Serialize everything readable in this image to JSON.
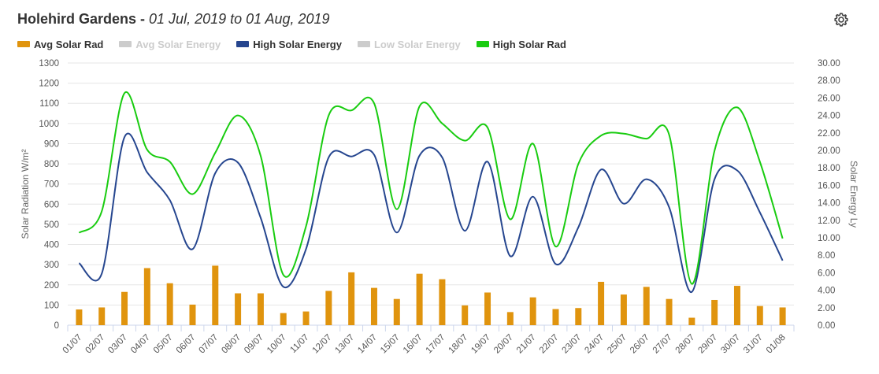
{
  "title": {
    "station": "Holehird Gardens",
    "separator": " - ",
    "range": "01 Jul, 2019 to 01 Aug, 2019"
  },
  "settings_icon": "gear-icon",
  "legend": [
    {
      "label": "Avg Solar Rad",
      "color": "#e0940e",
      "visible": true
    },
    {
      "label": "Avg Solar Energy",
      "color": "#cccccc",
      "visible": false
    },
    {
      "label": "High Solar Energy",
      "color": "#26468f",
      "visible": true
    },
    {
      "label": "Low Solar Energy",
      "color": "#cccccc",
      "visible": false
    },
    {
      "label": "High Solar Rad",
      "color": "#19cc10",
      "visible": true
    }
  ],
  "chart_data": {
    "type": "bar+line",
    "categories": [
      "01/07",
      "02/07",
      "03/07",
      "04/07",
      "05/07",
      "06/07",
      "07/07",
      "08/07",
      "09/07",
      "10/07",
      "11/07",
      "12/07",
      "13/07",
      "14/07",
      "15/07",
      "16/07",
      "17/07",
      "18/07",
      "19/07",
      "20/07",
      "21/07",
      "22/07",
      "23/07",
      "24/07",
      "25/07",
      "26/07",
      "27/07",
      "28/07",
      "29/07",
      "30/07",
      "31/07",
      "01/08"
    ],
    "y_left": {
      "label": "Solar Radiation W/m²",
      "min": 0,
      "max": 1300,
      "ticks": [
        "0",
        "100",
        "200",
        "300",
        "400",
        "500",
        "600",
        "700",
        "800",
        "900",
        "1000",
        "1100",
        "1200",
        "1300"
      ]
    },
    "y_right": {
      "label": "Solar Energy Ly",
      "min": 0,
      "max": 30,
      "ticks": [
        "0.00",
        "2.00",
        "4.00",
        "6.00",
        "8.00",
        "10.00",
        "12.00",
        "14.00",
        "16.00",
        "18.00",
        "20.00",
        "22.00",
        "24.00",
        "26.00",
        "28.00",
        "30.00"
      ]
    },
    "grid": true,
    "legend_position": "top-left",
    "series": [
      {
        "name": "Avg Solar Rad",
        "kind": "bar",
        "axis": "left",
        "color": "#e0940e",
        "values": [
          78,
          88,
          165,
          283,
          208,
          102,
          295,
          158,
          158,
          60,
          68,
          170,
          262,
          185,
          130,
          255,
          228,
          98,
          162,
          65,
          138,
          80,
          85,
          215,
          152,
          190,
          130,
          37,
          125,
          195,
          95,
          88
        ]
      },
      {
        "name": "High Solar Energy",
        "kind": "line",
        "axis": "right",
        "color": "#26468f",
        "values": [
          7.1,
          5.9,
          21.5,
          17.5,
          14.3,
          8.7,
          17.4,
          18.6,
          12.3,
          4.4,
          8.7,
          19.2,
          19.3,
          19.5,
          10.6,
          19.4,
          19.2,
          10.8,
          18.7,
          7.9,
          14.7,
          7.0,
          11.2,
          17.8,
          13.9,
          16.7,
          13.5,
          3.8,
          16.7,
          17.7,
          12.9,
          7.4
        ]
      },
      {
        "name": "High Solar Rad",
        "kind": "line",
        "axis": "left",
        "color": "#19cc10",
        "values": [
          458,
          565,
          1150,
          870,
          810,
          650,
          855,
          1040,
          840,
          250,
          490,
          1040,
          1065,
          1100,
          575,
          1085,
          1000,
          915,
          980,
          525,
          900,
          390,
          800,
          940,
          950,
          925,
          945,
          205,
          865,
          1080,
          810,
          430
        ]
      }
    ]
  }
}
